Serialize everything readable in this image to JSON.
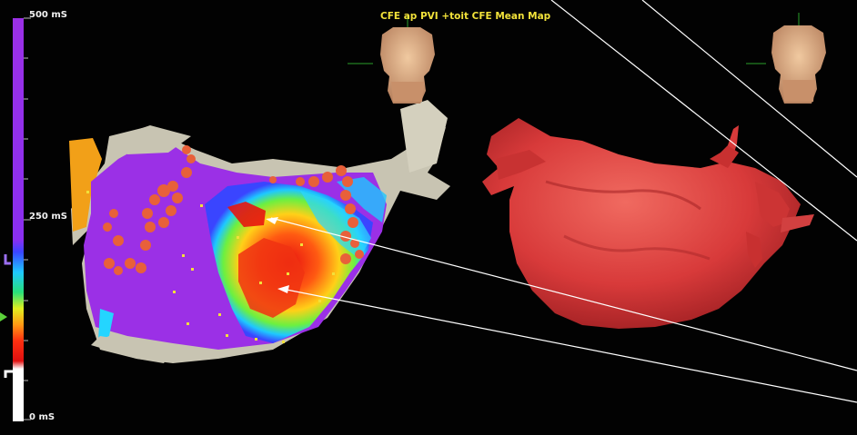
{
  "map": {
    "title": "CFE ap PVI +toit CFE Mean Map"
  },
  "color_scale": {
    "max_label": "500 mS",
    "mid_label": "250 mS",
    "min_label": "0 mS",
    "colors": [
      "#9b30e6",
      "#5b2cff",
      "#2f6cff",
      "#1ec8ff",
      "#28e07a",
      "#c8f01c",
      "#ffe81a",
      "#ff9a14",
      "#ff4a10",
      "#e81010",
      "#ffffff"
    ]
  },
  "icons": {
    "torso_left": "torso-orientation-icon",
    "torso_right": "torso-orientation-icon",
    "pointer_left": "scale-pointer-icon"
  },
  "colors": {
    "background": "#020202",
    "shell": "#c8c4b2",
    "ablation_points": "#e8603a",
    "heart_model": "#d83a3a",
    "title_text": "#f2e23a"
  }
}
